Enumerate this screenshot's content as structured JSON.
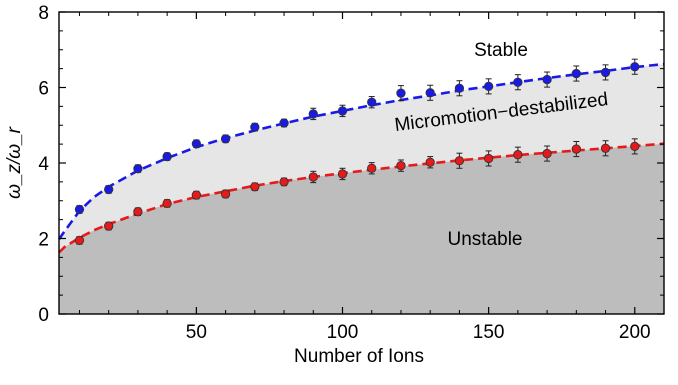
{
  "chart_data": {
    "type": "scatter",
    "xlabel": "Number of Ions",
    "ylabel": "ω_z/ω_r",
    "xlim": [
      3,
      210
    ],
    "ylim": [
      0,
      8
    ],
    "x_ticks": [
      50,
      100,
      150,
      200
    ],
    "y_ticks": [
      0,
      2,
      4,
      6,
      8
    ],
    "grid": false,
    "regions": [
      {
        "label": "Stable",
        "color": "#ffffff"
      },
      {
        "label": "Micromotion−destabilized",
        "color": "#e6e6e6"
      },
      {
        "label": "Unstable",
        "color": "#bdbdbd"
      }
    ],
    "series": [
      {
        "color": "#1a1ae6",
        "x": [
          10,
          20,
          30,
          40,
          50,
          60,
          70,
          80,
          90,
          100,
          110,
          120,
          130,
          140,
          150,
          160,
          170,
          180,
          190,
          200
        ],
        "y": [
          2.77,
          3.3,
          3.85,
          4.17,
          4.51,
          4.64,
          4.95,
          5.06,
          5.3,
          5.38,
          5.61,
          5.85,
          5.86,
          5.98,
          6.03,
          6.14,
          6.21,
          6.37,
          6.4,
          6.55
        ],
        "yerr": [
          0.1,
          0.1,
          0.1,
          0.1,
          0.1,
          0.1,
          0.1,
          0.1,
          0.15,
          0.15,
          0.15,
          0.2,
          0.2,
          0.2,
          0.2,
          0.2,
          0.2,
          0.2,
          0.2,
          0.2
        ],
        "fit_x": [
          3,
          5,
          10,
          15,
          20,
          30,
          40,
          50,
          60,
          70,
          80,
          90,
          100,
          110,
          120,
          130,
          140,
          150,
          160,
          170,
          180,
          190,
          200,
          210
        ],
        "fit_y": [
          1.98,
          2.2,
          2.73,
          3.1,
          3.37,
          3.8,
          4.13,
          4.42,
          4.66,
          4.86,
          5.05,
          5.23,
          5.38,
          5.53,
          5.67,
          5.79,
          5.92,
          6.03,
          6.14,
          6.25,
          6.35,
          6.44,
          6.54,
          6.62
        ]
      },
      {
        "color": "#e61a1a",
        "x": [
          10,
          20,
          30,
          40,
          50,
          60,
          70,
          80,
          90,
          100,
          110,
          120,
          130,
          140,
          150,
          160,
          170,
          180,
          190,
          200
        ],
        "y": [
          1.95,
          2.33,
          2.71,
          2.93,
          3.15,
          3.18,
          3.37,
          3.5,
          3.63,
          3.71,
          3.86,
          3.93,
          4.02,
          4.06,
          4.12,
          4.22,
          4.25,
          4.37,
          4.39,
          4.44
        ],
        "yerr": [
          0.1,
          0.1,
          0.1,
          0.1,
          0.1,
          0.1,
          0.1,
          0.1,
          0.15,
          0.15,
          0.15,
          0.15,
          0.15,
          0.2,
          0.2,
          0.2,
          0.2,
          0.2,
          0.2,
          0.2
        ],
        "fit_x": [
          3,
          5,
          10,
          15,
          20,
          30,
          40,
          50,
          60,
          70,
          80,
          90,
          100,
          110,
          120,
          130,
          140,
          150,
          160,
          170,
          180,
          190,
          200,
          210
        ],
        "fit_y": [
          1.63,
          1.78,
          2.02,
          2.22,
          2.38,
          2.66,
          2.91,
          3.1,
          3.25,
          3.4,
          3.52,
          3.63,
          3.73,
          3.82,
          3.91,
          3.99,
          4.07,
          4.14,
          4.21,
          4.27,
          4.33,
          4.39,
          4.45,
          4.51
        ]
      }
    ]
  }
}
